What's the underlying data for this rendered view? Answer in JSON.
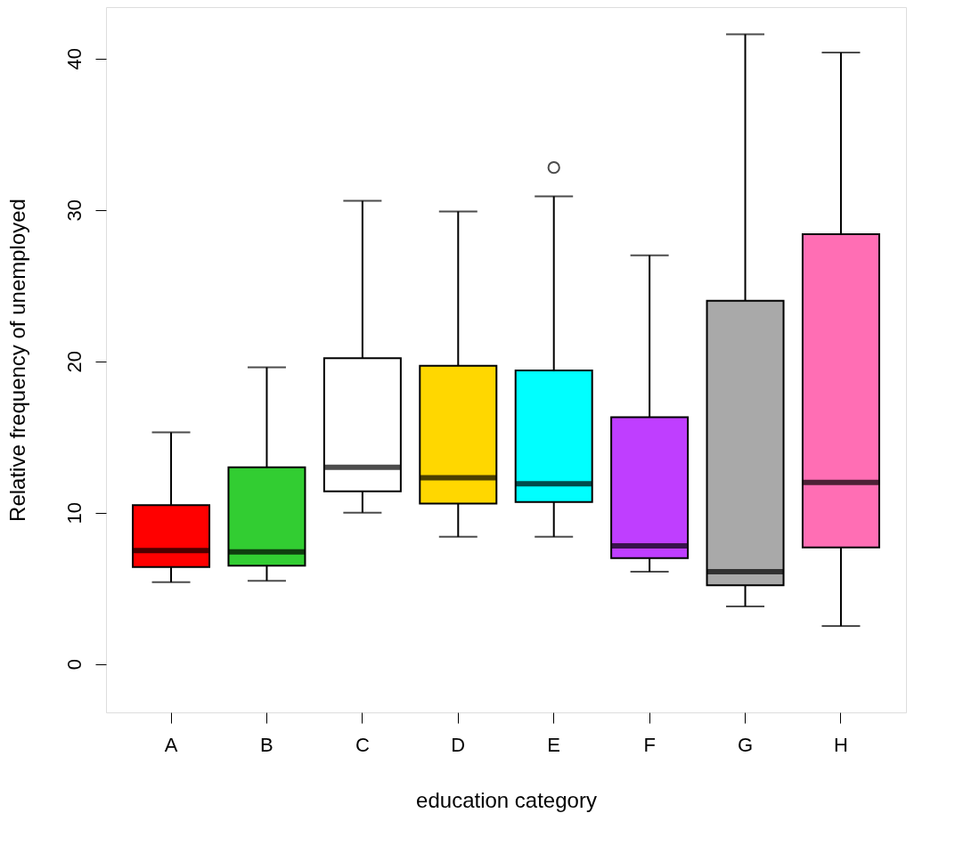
{
  "chart_data": {
    "type": "box",
    "xlabel": "education category",
    "ylabel": "Relative frequency of unemployed",
    "categories": [
      "A",
      "B",
      "C",
      "D",
      "E",
      "F",
      "G",
      "H"
    ],
    "colors": [
      "#ff0000",
      "#32cd32",
      "#ffffff",
      "#ffd700",
      "#00ffff",
      "#bf3eff",
      "#a9a9a9",
      "#ff6eb4"
    ],
    "boxes": [
      {
        "low": 5.4,
        "q1": 6.4,
        "median": 7.5,
        "q3": 10.5,
        "high": 15.3
      },
      {
        "low": 5.5,
        "q1": 6.5,
        "median": 7.4,
        "q3": 13.0,
        "high": 19.6
      },
      {
        "low": 10.0,
        "q1": 11.4,
        "median": 13.0,
        "q3": 20.2,
        "high": 30.6
      },
      {
        "low": 8.4,
        "q1": 10.6,
        "median": 12.3,
        "q3": 19.7,
        "high": 29.9
      },
      {
        "low": 8.4,
        "q1": 10.7,
        "median": 11.9,
        "q3": 19.4,
        "high": 30.9,
        "outliers": [
          32.8
        ]
      },
      {
        "low": 6.1,
        "q1": 7.0,
        "median": 7.8,
        "q3": 16.3,
        "high": 27.0
      },
      {
        "low": 3.8,
        "q1": 5.2,
        "median": 6.1,
        "q3": 24.0,
        "high": 41.6
      },
      {
        "low": 2.5,
        "q1": 7.7,
        "median": 12.0,
        "q3": 28.4,
        "high": 40.4
      }
    ],
    "ylim": [
      -3.2,
      43.4
    ],
    "yticks": [
      0,
      10,
      20,
      30,
      40
    ],
    "grid": false,
    "legend": false
  }
}
